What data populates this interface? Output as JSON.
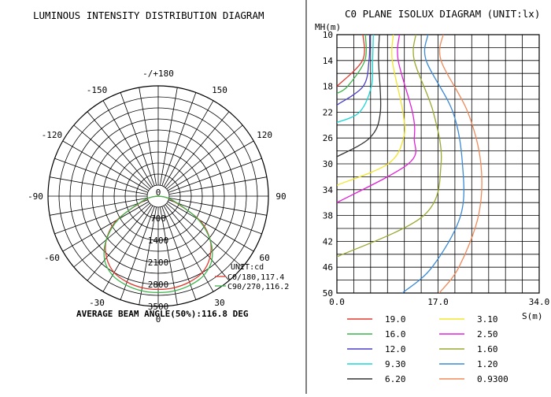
{
  "chart_data": [
    {
      "type": "polar",
      "title": "LUMINOUS INTENSITY DISTRIBUTION DIAGRAM",
      "angle_labels": [
        {
          "angle": 180,
          "text": "-/+180"
        },
        {
          "angle": -150,
          "text": "-150"
        },
        {
          "angle": 150,
          "text": "150"
        },
        {
          "angle": -120,
          "text": "-120"
        },
        {
          "angle": 120,
          "text": "120"
        },
        {
          "angle": -90,
          "text": "-90"
        },
        {
          "angle": 90,
          "text": "90"
        },
        {
          "angle": -60,
          "text": "-60"
        },
        {
          "angle": 60,
          "text": "60"
        },
        {
          "angle": -30,
          "text": "-30"
        },
        {
          "angle": 30,
          "text": "30"
        },
        {
          "angle": 0,
          "text": "0"
        }
      ],
      "radial_ticks": [
        0,
        700,
        1400,
        2100,
        2800,
        3500
      ],
      "radial_max": 3500,
      "unit": "UNIT:cd",
      "series": [
        {
          "name": "C0/180,117.4",
          "color": "#e03a2e",
          "angles": [
            -90,
            -75,
            -60,
            -50,
            -40,
            -30,
            -20,
            -10,
            0,
            10,
            20,
            30,
            40,
            50,
            60,
            75,
            90
          ],
          "values": [
            0,
            400,
            1500,
            2150,
            2550,
            2800,
            2900,
            2950,
            2960,
            2950,
            2900,
            2800,
            2550,
            2150,
            1500,
            400,
            0
          ]
        },
        {
          "name": "C90/270,116.2",
          "color": "#3cb44b",
          "angles": [
            -90,
            -75,
            -60,
            -50,
            -40,
            -30,
            -20,
            -10,
            0,
            10,
            20,
            30,
            40,
            50,
            60,
            75,
            90
          ],
          "values": [
            0,
            450,
            1450,
            2150,
            2650,
            2900,
            3000,
            3050,
            3060,
            3050,
            3000,
            2900,
            2650,
            2150,
            1450,
            450,
            0
          ]
        }
      ],
      "footer": "AVERAGE BEAM ANGLE(50%):116.8 DEG"
    },
    {
      "type": "line",
      "title": "C0 PLANE ISOLUX DIAGRAM (UNIT:lx)",
      "ylabel": "MH(m)",
      "xlabel": "S(m)",
      "xlim": [
        0,
        34
      ],
      "ylim": [
        10,
        50
      ],
      "x_ticks": [
        "0.0",
        "17.0",
        "34.0"
      ],
      "y_ticks": [
        10,
        14,
        18,
        22,
        26,
        30,
        34,
        38,
        42,
        46,
        50
      ],
      "series": [
        {
          "name": "19.0",
          "color": "#e03a2e",
          "reach": [
            [
              14,
              4.3
            ],
            [
              18,
              0
            ]
          ]
        },
        {
          "name": "16.0",
          "color": "#3cb44b",
          "reach": [
            [
              14,
              4.7
            ],
            [
              18,
              1.8
            ],
            [
              19.1,
              0
            ]
          ]
        },
        {
          "name": "12.0",
          "color": "#4a3fc8",
          "reach": [
            [
              14,
              5.4
            ],
            [
              18,
              4.4
            ],
            [
              20.9,
              0
            ]
          ]
        },
        {
          "name": "9.30",
          "color": "#19d6d6",
          "reach": [
            [
              14,
              6.0
            ],
            [
              18,
              5.8
            ],
            [
              22,
              3.8
            ],
            [
              23.6,
              0
            ]
          ]
        },
        {
          "name": "6.20",
          "color": "#333333",
          "reach": [
            [
              14,
              7.0
            ],
            [
              22,
              7.3
            ],
            [
              26,
              5.5
            ],
            [
              28.9,
              0
            ]
          ]
        },
        {
          "name": "3.10",
          "color": "#f2e52a",
          "reach": [
            [
              14,
              9.3
            ],
            [
              22,
              11.1
            ],
            [
              26,
              11.2
            ],
            [
              30,
              8.6
            ],
            [
              33.3,
              0
            ]
          ]
        },
        {
          "name": "2.50",
          "color": "#e020d8",
          "reach": [
            [
              14,
              10.3
            ],
            [
              22,
              12.7
            ],
            [
              26,
              13.0
            ],
            [
              30,
              12.0
            ],
            [
              36,
              0
            ]
          ]
        },
        {
          "name": "1.60",
          "color": "#9aa830",
          "reach": [
            [
              14,
              13.0
            ],
            [
              22,
              16.2
            ],
            [
              30,
              17.5
            ],
            [
              38,
              14.6
            ],
            [
              44.4,
              0
            ]
          ]
        },
        {
          "name": "1.20",
          "color": "#3b8ad6",
          "reach": [
            [
              14,
              15.0
            ],
            [
              22,
              19.5
            ],
            [
              30,
              21.1
            ],
            [
              38,
              20.8
            ],
            [
              46,
              16.0
            ],
            [
              50,
              11.0
            ]
          ]
        },
        {
          "name": "0.9300",
          "color": "#f08a5a",
          "reach": [
            [
              14,
              17.5
            ],
            [
              22,
              22.0
            ],
            [
              30,
              24.2
            ],
            [
              38,
              23.8
            ],
            [
              46,
              20.5
            ],
            [
              50,
              17.2
            ]
          ]
        }
      ]
    }
  ]
}
